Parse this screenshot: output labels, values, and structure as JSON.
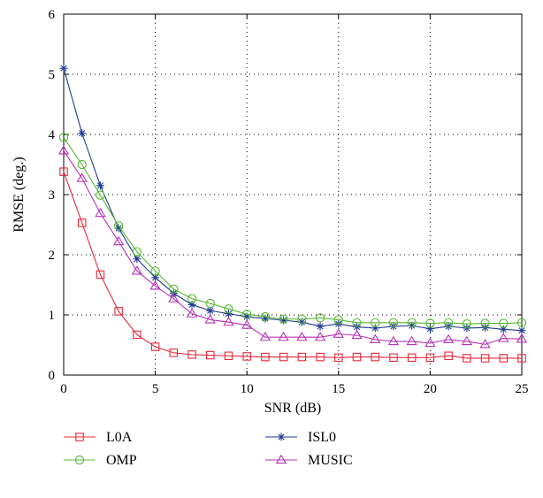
{
  "chart_data": {
    "type": "line",
    "xlabel": "SNR (dB)",
    "ylabel": "RMSE (deg.)",
    "xlim": [
      0,
      25
    ],
    "ylim": [
      0,
      6
    ],
    "xticks": [
      "0",
      "5",
      "10",
      "15",
      "20",
      "25"
    ],
    "yticks": [
      "0",
      "1",
      "2",
      "3",
      "4",
      "5",
      "6"
    ],
    "grid": "dotted",
    "legend_placement": "bottom",
    "x": [
      0,
      1,
      2,
      3,
      4,
      5,
      6,
      7,
      8,
      9,
      10,
      11,
      12,
      13,
      14,
      15,
      16,
      17,
      18,
      19,
      20,
      21,
      22,
      23,
      24,
      25
    ],
    "series": [
      {
        "name": "L0A",
        "color": "#e8283a",
        "marker": "square",
        "values": [
          3.38,
          2.53,
          1.67,
          1.06,
          0.67,
          0.47,
          0.37,
          0.34,
          0.33,
          0.32,
          0.31,
          0.3,
          0.3,
          0.3,
          0.3,
          0.29,
          0.3,
          0.3,
          0.29,
          0.29,
          0.29,
          0.32,
          0.28,
          0.28,
          0.28,
          0.28
        ]
      },
      {
        "name": "ISL0",
        "color": "#1f3a93",
        "marker": "star",
        "values": [
          5.1,
          4.02,
          3.15,
          2.44,
          1.93,
          1.62,
          1.36,
          1.17,
          1.07,
          1.02,
          0.97,
          0.94,
          0.91,
          0.88,
          0.81,
          0.85,
          0.8,
          0.78,
          0.81,
          0.82,
          0.77,
          0.81,
          0.78,
          0.79,
          0.76,
          0.74
        ]
      },
      {
        "name": "OMP",
        "color": "#55b832",
        "marker": "circle",
        "values": [
          3.95,
          3.5,
          2.99,
          2.48,
          2.05,
          1.73,
          1.43,
          1.27,
          1.19,
          1.1,
          1.01,
          0.97,
          0.93,
          0.93,
          0.95,
          0.92,
          0.87,
          0.87,
          0.87,
          0.87,
          0.86,
          0.87,
          0.85,
          0.86,
          0.86,
          0.87
        ]
      },
      {
        "name": "MUSIC",
        "color": "#b832b8",
        "marker": "triangle",
        "values": [
          3.73,
          3.27,
          2.69,
          2.22,
          1.73,
          1.48,
          1.27,
          1.02,
          0.92,
          0.88,
          0.83,
          0.63,
          0.63,
          0.63,
          0.63,
          0.68,
          0.66,
          0.59,
          0.56,
          0.56,
          0.53,
          0.59,
          0.56,
          0.51,
          0.61,
          0.6
        ]
      }
    ]
  }
}
